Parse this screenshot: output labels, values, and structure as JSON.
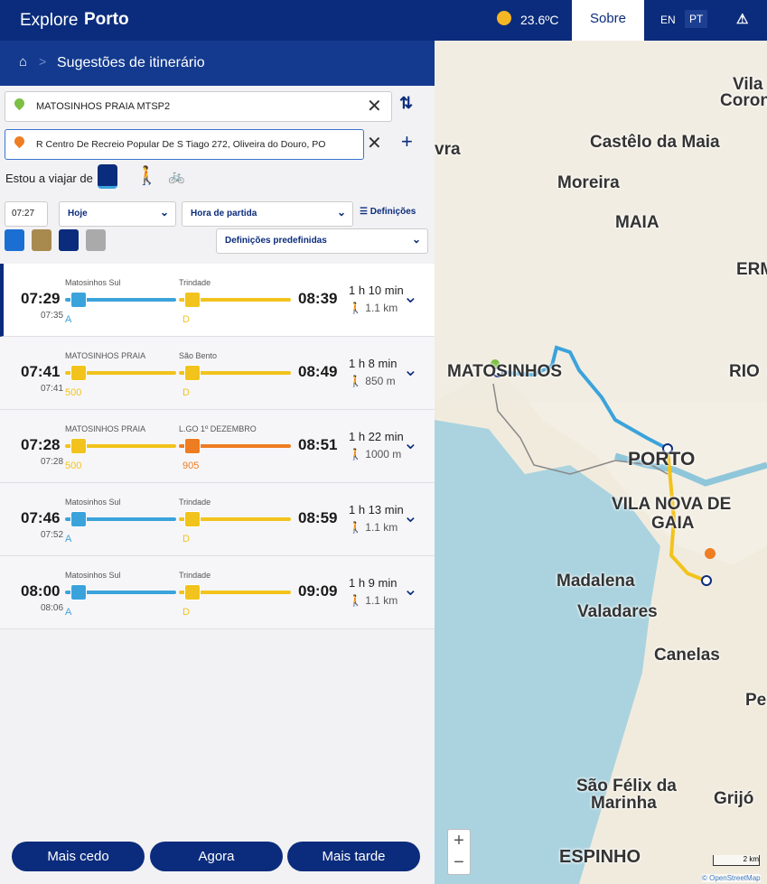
{
  "header": {
    "brand_light": "Explore",
    "brand_bold": "Porto",
    "temperature": "23.6ºC",
    "about": "Sobre",
    "languages": [
      "EN",
      "PT"
    ]
  },
  "breadcrumb": {
    "title": "Sugestões de itinerário"
  },
  "search": {
    "origin": "MATOSINHOS PRAIA MTSP2",
    "destination": "R Centro De Recreio Popular De S Tiago 272, Oliveira do Douro, PO",
    "travel_label": "Estou a viajar de"
  },
  "options": {
    "time": "07:27",
    "day": "Hoje",
    "mode": "Hora de partida",
    "settings": "Definições",
    "presets": "Definições predefinidas"
  },
  "routes": [
    {
      "depart": "07:29",
      "arrive": "08:39",
      "sub_time": "07:35",
      "duration": "1 h 10 min",
      "walk": "1.1 km",
      "legs": [
        {
          "stop": "Matosinhos Sul",
          "line": "A",
          "color": "#3ba3dc"
        },
        {
          "stop": "Trindade",
          "line": "D",
          "color": "#f2c31c"
        }
      ]
    },
    {
      "depart": "07:41",
      "arrive": "08:49",
      "sub_time": "07:41",
      "duration": "1 h 8 min",
      "walk": "850 m",
      "legs": [
        {
          "stop": "MATOSINHOS PRAIA",
          "line": "500",
          "color": "#f2c31c"
        },
        {
          "stop": "São Bento",
          "line": "D",
          "color": "#f2c31c"
        }
      ]
    },
    {
      "depart": "07:28",
      "arrive": "08:51",
      "sub_time": "07:28",
      "duration": "1 h 22 min",
      "walk": "1000 m",
      "legs": [
        {
          "stop": "MATOSINHOS PRAIA",
          "line": "500",
          "color": "#f2c31c"
        },
        {
          "stop": "L.GO 1º DEZEMBRO",
          "line": "905",
          "color": "#ee7d22"
        }
      ]
    },
    {
      "depart": "07:46",
      "arrive": "08:59",
      "sub_time": "07:52",
      "duration": "1 h 13 min",
      "walk": "1.1 km",
      "legs": [
        {
          "stop": "Matosinhos Sul",
          "line": "A",
          "color": "#3ba3dc"
        },
        {
          "stop": "Trindade",
          "line": "D",
          "color": "#f2c31c"
        }
      ]
    },
    {
      "depart": "08:00",
      "arrive": "09:09",
      "sub_time": "08:06",
      "duration": "1 h 9 min",
      "walk": "1.1 km",
      "legs": [
        {
          "stop": "Matosinhos Sul",
          "line": "A",
          "color": "#3ba3dc"
        },
        {
          "stop": "Trindade",
          "line": "D",
          "color": "#f2c31c"
        }
      ]
    }
  ],
  "buttons": [
    "Mais cedo",
    "Agora",
    "Mais tarde"
  ],
  "map": {
    "labels": [
      "Vila",
      "Coron",
      "vra",
      "Castêlo da Maia",
      "Moreira",
      "MAIA",
      "ERM",
      "MATOSINHOS",
      "RIO",
      "PORTO",
      "VILA NOVA DE",
      "GAIA",
      "Madalena",
      "Valadares",
      "Canelas",
      "Pe",
      "São Félix da",
      "Marinha",
      "Grijó",
      "ESPINHO"
    ],
    "scale": "2 km",
    "attribution": "© OpenStreetMap"
  }
}
